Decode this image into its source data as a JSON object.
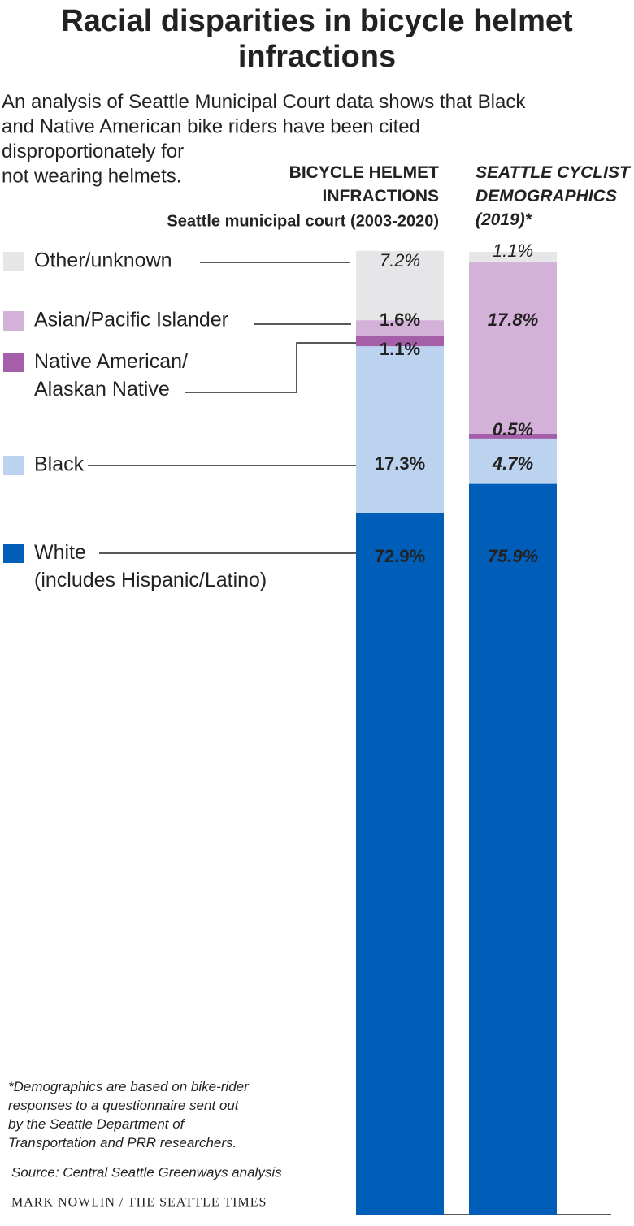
{
  "chart_data": {
    "type": "stacked_bar",
    "title": "Racial disparities in bicycle helmet\ninfractions",
    "subtitle": "An analysis of Seattle Municipal Court data shows that Black\nand Native American bike riders have been cited\ndisproportionately for\nnot wearing helmets.",
    "categories": [
      "BICYCLE HELMET\nINFRACTIONS",
      "SEATTLE CYCLIST\nDEMOGRAPHICS\n(2019)*"
    ],
    "category_note": "Seattle municipal court (2003-2020)",
    "ylim": [
      0,
      100
    ],
    "series": [
      {
        "name": "White\n(includes Hispanic/Latino)",
        "color": "#005eb8",
        "values": [
          72.9,
          75.9
        ],
        "value_labels": [
          "72.9%",
          "75.9%"
        ]
      },
      {
        "name": "Black",
        "color": "#bcd3ef",
        "values": [
          17.3,
          4.7
        ],
        "value_labels": [
          "17.3%",
          "4.7%"
        ]
      },
      {
        "name": "Native American/\nAlaskan Native",
        "color": "#a55ea8",
        "values": [
          1.1,
          0.5
        ],
        "value_labels": [
          "1.1%",
          "0.5%"
        ]
      },
      {
        "name": "Asian/Pacific Islander",
        "color": "#d4b1d8",
        "values": [
          1.6,
          17.8
        ],
        "value_labels": [
          "1.6%",
          "17.8%"
        ]
      },
      {
        "name": "Other/unknown",
        "color": "#e6e6e8",
        "values": [
          7.2,
          1.1
        ],
        "value_labels": [
          "7.2%",
          "1.1%"
        ]
      }
    ],
    "footnote": "*Demographics are based on bike-rider\nresponses to a questionnaire sent out\nby the Seattle Department of\nTransportation and PRR researchers.",
    "source": "Source: Central Seattle Greenways analysis",
    "credit": "MARK NOWLIN / THE SEATTLE TIMES"
  }
}
